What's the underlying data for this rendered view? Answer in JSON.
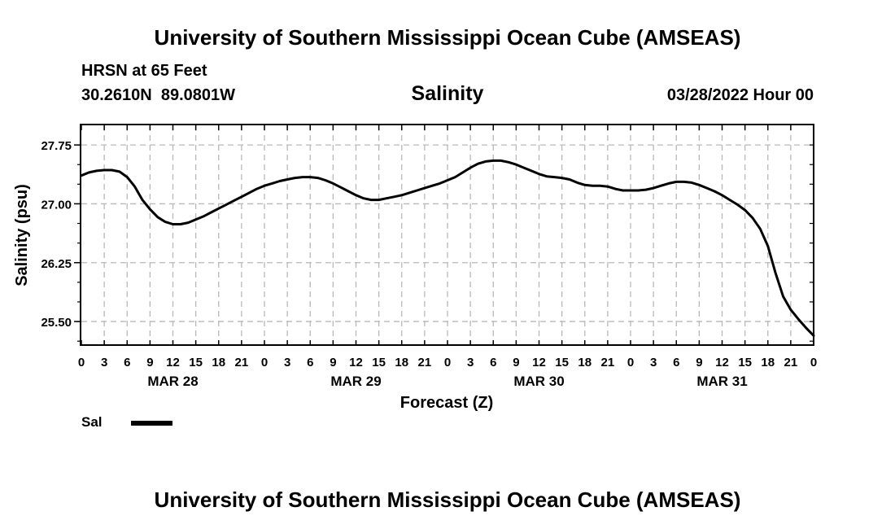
{
  "header": {
    "title": "University of Southern Mississippi Ocean Cube (AMSEAS)",
    "station": "HRSN at 65 Feet",
    "coordinates": "30.2610N  89.0801W",
    "plot_title": "Salinity",
    "datetime": "03/28/2022 Hour 00"
  },
  "footer": {
    "title": "University of Southern Mississippi Ocean Cube (AMSEAS)"
  },
  "legend": {
    "label": "Sal",
    "color": "#000000"
  },
  "chart_data": {
    "type": "line",
    "title": "Salinity",
    "xlabel": "Forecast (Z)",
    "ylabel": "Salinity (psu)",
    "ylim": [
      25.2,
      28.0
    ],
    "yticks": [
      25.5,
      26.25,
      27.0,
      27.75
    ],
    "ytick_labels": [
      "25.50",
      "26.25",
      "27.00",
      "27.75"
    ],
    "xlim": [
      0,
      96
    ],
    "xtick_hours": [
      0,
      3,
      6,
      9,
      12,
      15,
      18,
      21,
      24,
      27,
      30,
      33,
      36,
      39,
      42,
      45,
      48,
      51,
      54,
      57,
      60,
      63,
      66,
      69,
      72,
      75,
      78,
      81,
      84,
      87,
      90,
      93,
      96
    ],
    "xtick_labels": [
      "0",
      "3",
      "6",
      "9",
      "12",
      "15",
      "18",
      "21",
      "0",
      "3",
      "6",
      "9",
      "12",
      "15",
      "18",
      "21",
      "0",
      "3",
      "6",
      "9",
      "12",
      "15",
      "18",
      "21",
      "0",
      "3",
      "6",
      "9",
      "12",
      "15",
      "18",
      "21",
      "0"
    ],
    "day_labels": [
      {
        "hour": 12,
        "label": "MAR 28"
      },
      {
        "hour": 36,
        "label": "MAR 29"
      },
      {
        "hour": 60,
        "label": "MAR 30"
      },
      {
        "hour": 84,
        "label": "MAR 31"
      }
    ],
    "grid": true,
    "series": [
      {
        "name": "Sal",
        "color": "#000000",
        "x": [
          0,
          1,
          2,
          3,
          4,
          5,
          6,
          7,
          8,
          9,
          10,
          11,
          12,
          13,
          14,
          15,
          16,
          17,
          18,
          19,
          20,
          21,
          22,
          23,
          24,
          25,
          26,
          27,
          28,
          29,
          30,
          31,
          32,
          33,
          34,
          35,
          36,
          37,
          38,
          39,
          40,
          41,
          42,
          43,
          44,
          45,
          46,
          47,
          48,
          49,
          50,
          51,
          52,
          53,
          54,
          55,
          56,
          57,
          58,
          59,
          60,
          61,
          62,
          63,
          64,
          65,
          66,
          67,
          68,
          69,
          70,
          71,
          72,
          73,
          74,
          75,
          76,
          77,
          78,
          79,
          80,
          81,
          82,
          83,
          84,
          85,
          86,
          87,
          88,
          89,
          90,
          91,
          92,
          93,
          94,
          95,
          96
        ],
        "values": [
          27.36,
          27.4,
          27.42,
          27.43,
          27.43,
          27.41,
          27.34,
          27.22,
          27.05,
          26.93,
          26.83,
          26.77,
          26.74,
          26.74,
          26.76,
          26.8,
          26.84,
          26.89,
          26.94,
          26.99,
          27.04,
          27.09,
          27.14,
          27.19,
          27.23,
          27.26,
          27.29,
          27.31,
          27.33,
          27.34,
          27.34,
          27.33,
          27.3,
          27.26,
          27.21,
          27.16,
          27.11,
          27.07,
          27.05,
          27.05,
          27.07,
          27.09,
          27.11,
          27.14,
          27.17,
          27.2,
          27.23,
          27.26,
          27.3,
          27.34,
          27.4,
          27.46,
          27.51,
          27.54,
          27.55,
          27.55,
          27.53,
          27.5,
          27.46,
          27.42,
          27.38,
          27.35,
          27.34,
          27.33,
          27.31,
          27.27,
          27.24,
          27.23,
          27.23,
          27.22,
          27.19,
          27.17,
          27.17,
          27.17,
          27.18,
          27.2,
          27.23,
          27.26,
          27.28,
          27.28,
          27.27,
          27.24,
          27.2,
          27.16,
          27.11,
          27.05,
          26.99,
          26.92,
          26.82,
          26.68,
          26.46,
          26.12,
          25.82,
          25.65,
          25.53,
          25.42,
          25.32
        ]
      }
    ]
  }
}
